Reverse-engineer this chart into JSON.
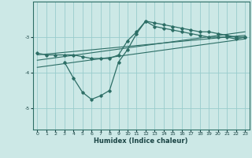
{
  "xlabel": "Humidex (Indice chaleur)",
  "bg_color": "#cce8e6",
  "grid_color": "#99cccc",
  "line_color": "#2d6e66",
  "xlim": [
    -0.5,
    23.5
  ],
  "ylim": [
    -5.6,
    -2.0
  ],
  "yticks": [
    -5,
    -4,
    -3
  ],
  "xticks": [
    0,
    1,
    2,
    3,
    4,
    5,
    6,
    7,
    8,
    9,
    10,
    11,
    12,
    13,
    14,
    15,
    16,
    17,
    18,
    19,
    20,
    21,
    22,
    23
  ],
  "line1_x": [
    0,
    1,
    2,
    3,
    4,
    5,
    6,
    7,
    8,
    9,
    10,
    11,
    12,
    13,
    14,
    15,
    16,
    17,
    18,
    19,
    20,
    21,
    22,
    23
  ],
  "line1_y": [
    -3.45,
    -3.5,
    -3.5,
    -3.5,
    -3.5,
    -3.55,
    -3.6,
    -3.6,
    -3.6,
    -3.5,
    -3.1,
    -2.85,
    -2.55,
    -2.6,
    -2.65,
    -2.7,
    -2.75,
    -2.8,
    -2.85,
    -2.85,
    -2.9,
    -2.95,
    -3.0,
    -3.0
  ],
  "line2_x": [
    3,
    4,
    5,
    6,
    7,
    8,
    9,
    10,
    11,
    12,
    13,
    14,
    15,
    16,
    17,
    18,
    19,
    20,
    21,
    22,
    23
  ],
  "line2_y": [
    -3.7,
    -4.15,
    -4.55,
    -4.75,
    -4.65,
    -4.5,
    -3.7,
    -3.35,
    -2.9,
    -2.55,
    -2.7,
    -2.75,
    -2.8,
    -2.85,
    -2.9,
    -2.95,
    -3.0,
    -3.0,
    -3.0,
    -3.05,
    -3.0
  ],
  "line3_x": [
    0,
    23
  ],
  "line3_y": [
    -3.65,
    -2.85
  ],
  "line4_x": [
    0,
    23
  ],
  "line4_y": [
    -3.5,
    -2.95
  ],
  "line5_x": [
    0,
    23
  ],
  "line5_y": [
    -3.85,
    -3.05
  ]
}
